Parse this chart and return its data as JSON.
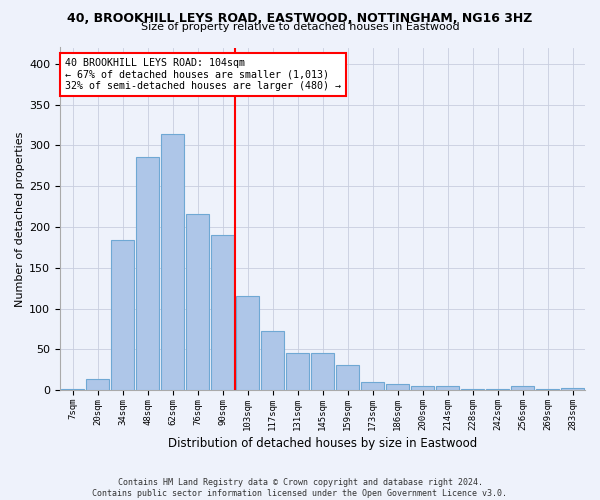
{
  "title_line1": "40, BROOKHILL LEYS ROAD, EASTWOOD, NOTTINGHAM, NG16 3HZ",
  "title_line2": "Size of property relative to detached houses in Eastwood",
  "xlabel": "Distribution of detached houses by size in Eastwood",
  "ylabel": "Number of detached properties",
  "bins": [
    "7sqm",
    "20sqm",
    "34sqm",
    "48sqm",
    "62sqm",
    "76sqm",
    "90sqm",
    "103sqm",
    "117sqm",
    "131sqm",
    "145sqm",
    "159sqm",
    "173sqm",
    "186sqm",
    "200sqm",
    "214sqm",
    "228sqm",
    "242sqm",
    "256sqm",
    "269sqm",
    "283sqm"
  ],
  "values": [
    2,
    14,
    184,
    286,
    314,
    216,
    190,
    115,
    72,
    46,
    45,
    31,
    10,
    7,
    5,
    5,
    1,
    1,
    5,
    1,
    3
  ],
  "bar_color": "#aec6e8",
  "bar_edge_color": "#6fa8d4",
  "annotation_text1": "40 BROOKHILL LEYS ROAD: 104sqm",
  "annotation_text2": "← 67% of detached houses are smaller (1,013)",
  "annotation_text3": "32% of semi-detached houses are larger (480) →",
  "annotation_box_color": "white",
  "annotation_border_color": "red",
  "vline_color": "red",
  "ylim": [
    0,
    420
  ],
  "yticks": [
    0,
    50,
    100,
    150,
    200,
    250,
    300,
    350,
    400
  ],
  "footer1": "Contains HM Land Registry data © Crown copyright and database right 2024.",
  "footer2": "Contains public sector information licensed under the Open Government Licence v3.0.",
  "bg_color": "#eef2fb",
  "grid_color": "#c8cedf"
}
